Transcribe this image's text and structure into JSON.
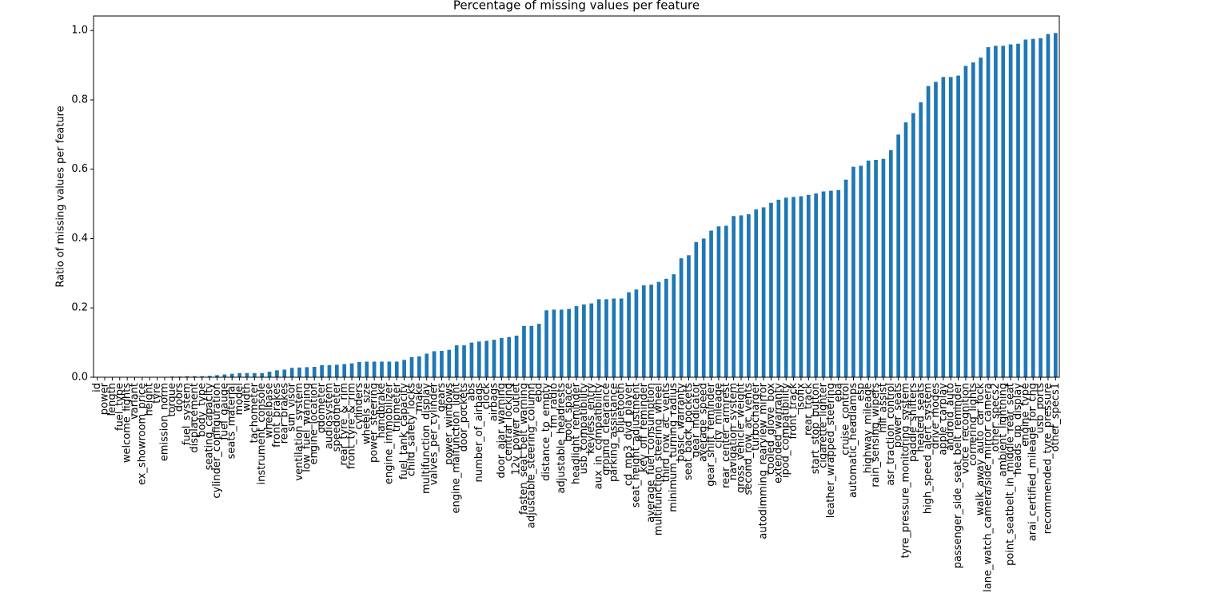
{
  "chart_data": {
    "type": "bar",
    "title": "Percentage of missing values per feature",
    "y_label": "Ratio of missing values per feature",
    "color": "#1f77b4",
    "categories": [
      "id",
      "power",
      "length",
      "fuel_type",
      "welcome_lights",
      "variant",
      "ex_showroom_price",
      "height",
      "tyre",
      "emission_norm",
      "torque",
      "doors",
      "fuel_system",
      "displacement",
      "body_type",
      "seating_capacity",
      "cylinder_configuration",
      "fuel_gauge",
      "seats_material",
      "model",
      "width",
      "tachometer",
      "instrument_console",
      "wheelbase",
      "front_brakes",
      "rear_brakes",
      "sun_visor",
      "ventilation_system",
      "low_fuel_warning",
      "engine_location",
      "odometer",
      "audiosystem",
      "speedometer",
      "rear_tyre_&_rim",
      "front_tyre_&_rim",
      "cylinders",
      "wheels_size",
      "power_steering",
      "handbrake",
      "engine_immobilizer",
      "tripmeter",
      "fuel_tank_capacity",
      "child_safety_locks",
      "make",
      "multifunction_display",
      "valves_per_cylinder",
      "gears",
      "power_windows",
      "engine_malfunction_light",
      "door_pockets",
      "abs",
      "number_of_airbags",
      "clock",
      "airbags",
      "door_ajar_warning",
      "central_locking",
      "12v_power_outlet",
      "fasten_seat_belt_warning",
      "adjustable_steering_column",
      "ebd",
      "distance_to_empty",
      "fm_radio",
      "adjustable_headrests",
      "boot_space",
      "headlight_reminder",
      "usb_compatibility",
      "keyless_entry",
      "aux_in_compatibility",
      "ground_clearance",
      "parking_assistance",
      "bluetooth",
      "cd_mp3_dvd_player",
      "seat_height_adjustment",
      "key_off_reminder",
      "average_fuel_consumption",
      "multifunction_steering_wheel",
      "third_row_ac_vents",
      "minimum_turning_radius",
      "basic_warranty",
      "seat_back_pockets",
      "gear_indicator",
      "average_speed",
      "gear_shift_reminder",
      "city_mileage",
      "rear_center_armrest",
      "navigation_system",
      "gross_vehicle_weight",
      "second_row_ac_vents",
      "turbocharger",
      "autodimming_rearview_mirror",
      "cooled_glove_box",
      "extended_warranty",
      "ipod_compatibility",
      "front_track",
      "isofix",
      "rear_track",
      "start_stop_button",
      "cigarette_lighter",
      "leather_wrapped_steering",
      "eba",
      "cruise_control",
      "automatic_headlamps",
      "esp",
      "highway_mileage",
      "rain_sensing_wipers",
      "hill_assist",
      "asr_traction_control",
      "power_seats",
      "tyre_pressure_monitoring_system",
      "paddle_shifters",
      "heated_seats",
      "high_speed_alert_system",
      "drive_modes",
      "apple_carplay",
      "android_auto",
      "passenger_side_seat_belt_reminder",
      "voice_recognition",
      "cornering_lights",
      "walk_away_auto_car_lock",
      "lane_watch_camera/side_mirror_camera",
      "other_specs2",
      "ambient_lightning",
      "point_seatbelt_in_middle_rear_seat",
      "heads_up_display",
      "engine_type",
      "arai_certified_mileage_for_cng",
      "usb_ports",
      "recommended_tyre_pressure",
      "other_specs1"
    ],
    "values": [
      0,
      0,
      0,
      0,
      0,
      0,
      0,
      0.001,
      0.001,
      0.001,
      0.002,
      0.002,
      0.003,
      0.003,
      0.003,
      0.004,
      0.006,
      0.008,
      0.01,
      0.012,
      0.012,
      0.012,
      0.012,
      0.016,
      0.02,
      0.022,
      0.027,
      0.028,
      0.029,
      0.03,
      0.035,
      0.035,
      0.036,
      0.038,
      0.04,
      0.044,
      0.045,
      0.045,
      0.045,
      0.045,
      0.045,
      0.05,
      0.058,
      0.06,
      0.068,
      0.075,
      0.076,
      0.079,
      0.092,
      0.092,
      0.1,
      0.103,
      0.105,
      0.108,
      0.113,
      0.116,
      0.12,
      0.148,
      0.148,
      0.154,
      0.193,
      0.195,
      0.195,
      0.197,
      0.205,
      0.21,
      0.213,
      0.225,
      0.225,
      0.227,
      0.227,
      0.245,
      0.253,
      0.265,
      0.267,
      0.275,
      0.284,
      0.297,
      0.343,
      0.352,
      0.39,
      0.4,
      0.423,
      0.435,
      0.437,
      0.465,
      0.467,
      0.47,
      0.484,
      0.49,
      0.503,
      0.512,
      0.518,
      0.52,
      0.522,
      0.526,
      0.53,
      0.536,
      0.538,
      0.54,
      0.57,
      0.607,
      0.61,
      0.625,
      0.627,
      0.63,
      0.655,
      0.7,
      0.735,
      0.762,
      0.793,
      0.84,
      0.852,
      0.866,
      0.866,
      0.87,
      0.898,
      0.908,
      0.922,
      0.952,
      0.956,
      0.956,
      0.96,
      0.962,
      0.974,
      0.976,
      0.978,
      0.99,
      0.993
    ],
    "ylim": [
      0,
      1.042
    ],
    "yticks": [
      {
        "value": 0,
        "label": "0.0"
      },
      {
        "value": 0.2,
        "label": "0.2"
      },
      {
        "value": 0.4,
        "label": "0.4"
      },
      {
        "value": 0.6,
        "label": "0.6"
      },
      {
        "value": 0.8,
        "label": "0.8"
      },
      {
        "value": 1,
        "label": "1.0"
      }
    ]
  }
}
